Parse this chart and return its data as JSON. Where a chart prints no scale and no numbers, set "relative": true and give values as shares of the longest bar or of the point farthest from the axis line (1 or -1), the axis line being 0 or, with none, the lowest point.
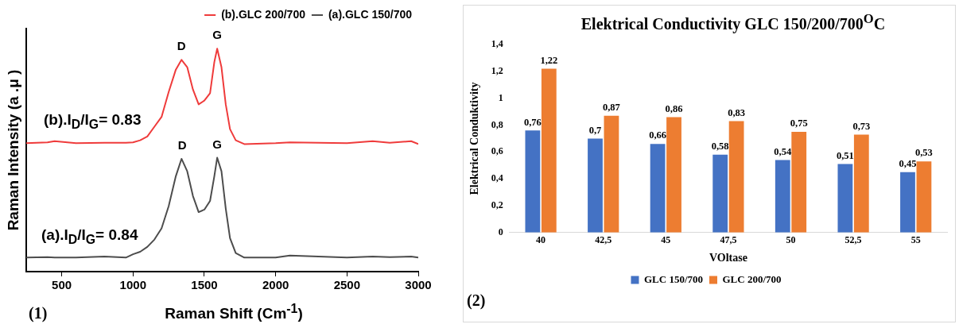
{
  "chart_data": [
    {
      "type": "line",
      "relative": true,
      "xlabel": "Raman Shift (Cm$^{-1}$)",
      "ylabel": "Raman Intensity (a .μ )",
      "xlim": [
        250,
        3000
      ],
      "xticks": [
        500,
        1000,
        1500,
        2000,
        2500,
        3000
      ],
      "legend": "top right",
      "x": [
        250,
        400,
        450,
        600,
        800,
        950,
        1000,
        1050,
        1100,
        1150,
        1200,
        1250,
        1300,
        1340,
        1380,
        1420,
        1460,
        1500,
        1540,
        1570,
        1590,
        1620,
        1650,
        1680,
        1720,
        1780,
        2000,
        2100,
        2500,
        2680,
        2800,
        2950,
        3000
      ],
      "series": [
        {
          "name": "(b).GLC 200/700",
          "color": "#ef3b3b",
          "values": [
            0.576,
            0.58,
            0.585,
            0.576,
            0.578,
            0.578,
            0.58,
            0.589,
            0.606,
            0.65,
            0.694,
            0.806,
            0.906,
            0.95,
            0.917,
            0.817,
            0.75,
            0.767,
            0.8,
            0.94,
            1.0,
            0.917,
            0.75,
            0.639,
            0.589,
            0.572,
            0.576,
            0.58,
            0.576,
            0.585,
            0.578,
            0.585,
            0.572
          ]
        },
        {
          "name": "(a).GLC 150/700",
          "color": "#4d4d4d",
          "values": [
            0.063,
            0.065,
            0.063,
            0.063,
            0.068,
            0.063,
            0.078,
            0.089,
            0.111,
            0.144,
            0.194,
            0.294,
            0.428,
            0.506,
            0.45,
            0.339,
            0.267,
            0.278,
            0.317,
            0.428,
            0.511,
            0.45,
            0.283,
            0.15,
            0.083,
            0.063,
            0.063,
            0.072,
            0.063,
            0.068,
            0.065,
            0.068,
            0.063
          ]
        }
      ],
      "annotations": [
        {
          "text": "D",
          "x": 1340,
          "y": 0.95
        },
        {
          "text": "G",
          "x": 1590,
          "y": 1.0
        },
        {
          "text": "D",
          "x": 1345,
          "y": 0.506
        },
        {
          "text": "G",
          "x": 1590,
          "y": 0.511
        },
        "(b).I$_{D}$/I$_{G}$= 0.83",
        "(a).I$_{D}$/I$_{G}$= 0.84",
        "(1)"
      ]
    },
    {
      "type": "bar",
      "title": "Elektrical Conductivity GLC 150/200/700$^{O}$C",
      "xlabel": "VOltase",
      "ylabel": "Elektrical Conduktivity",
      "legend": "bottom",
      "categories": [
        "40",
        "42,5",
        "45",
        "47,5",
        "50",
        "52,5",
        "55"
      ],
      "ylim": [
        0,
        1.4
      ],
      "yticks": [
        0,
        {
          "value": 0.2,
          "label": "0,2"
        },
        {
          "value": 0.4,
          "label": "0,4"
        },
        {
          "value": 0.6,
          "label": "0,6"
        },
        {
          "value": 0.8,
          "label": "0,8"
        },
        1,
        {
          "value": 1.2,
          "label": "1,2"
        },
        {
          "value": 1.4,
          "label": "1,4"
        }
      ],
      "series": [
        {
          "name": "GLC 150/700",
          "color": "#4472c4",
          "values": [
            0.76,
            0.7,
            0.66,
            0.58,
            0.54,
            0.51,
            0.45
          ],
          "value_labels": [
            "0,76",
            "0,7",
            "0,66",
            "0,58",
            "0,54",
            "0,51",
            "0,45"
          ]
        },
        {
          "name": "GLC 200/700",
          "color": "#ed7d31",
          "values": [
            1.22,
            0.87,
            0.86,
            0.83,
            0.75,
            0.73,
            0.53
          ],
          "value_labels": [
            "1,22",
            "0,87",
            "0,86",
            "0,83",
            "0,75",
            "0,73",
            "0,53"
          ]
        }
      ],
      "annotations": [
        "(2)"
      ]
    }
  ]
}
